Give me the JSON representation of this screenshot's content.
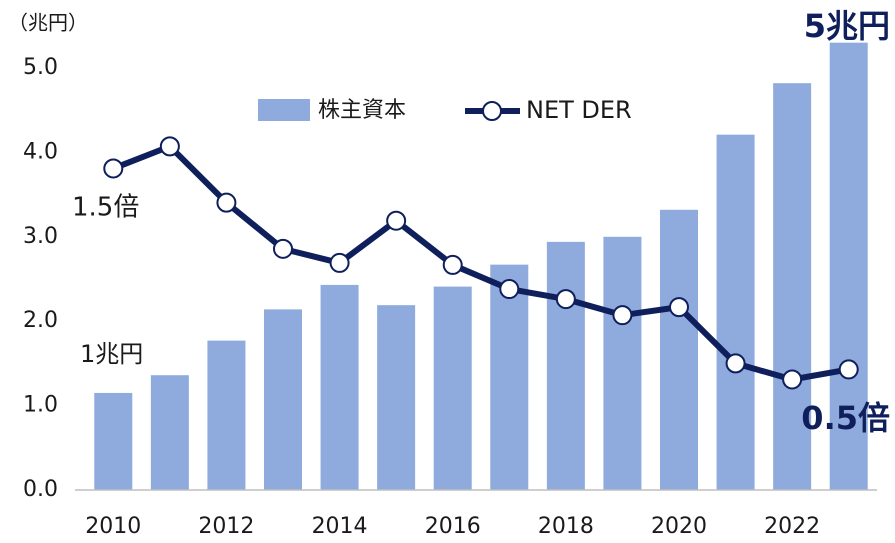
{
  "chart_data": {
    "type": "bar_line",
    "unit_label": "（兆円）",
    "categories": [
      "2010",
      null,
      "2012",
      null,
      "2014",
      null,
      "2016",
      null,
      "2018",
      null,
      "2020",
      null,
      "2022",
      null
    ],
    "series": [
      {
        "name": "株主資本",
        "type": "bar",
        "color": "#8faadc",
        "values": [
          1.15,
          1.36,
          1.77,
          2.14,
          2.43,
          2.19,
          2.41,
          2.67,
          2.94,
          3.0,
          3.32,
          4.21,
          4.82,
          5.3
        ]
      },
      {
        "name": "NET DER",
        "type": "line",
        "axis": "y2",
        "color": "#0f1f5c",
        "values": [
          1.5,
          1.61,
          1.33,
          1.1,
          1.03,
          1.24,
          1.02,
          0.9,
          0.85,
          0.77,
          0.81,
          0.53,
          0.45,
          0.5
        ]
      }
    ],
    "ylim": [
      0,
      5.0
    ],
    "yticks": [
      {
        "value": 0,
        "label": "0.0"
      },
      {
        "value": 1,
        "label": "1.0"
      },
      {
        "value": 2,
        "label": "2.0"
      },
      {
        "value": 3,
        "label": "3.0"
      },
      {
        "value": 4,
        "label": "4.0"
      },
      {
        "value": 5,
        "label": "5.0"
      }
    ],
    "y2lim": [
      -0.1,
      2.0
    ],
    "grid": false,
    "legend": "top",
    "annotations": [
      "1.5倍",
      "1兆円",
      "0.5倍",
      "5兆円"
    ]
  }
}
